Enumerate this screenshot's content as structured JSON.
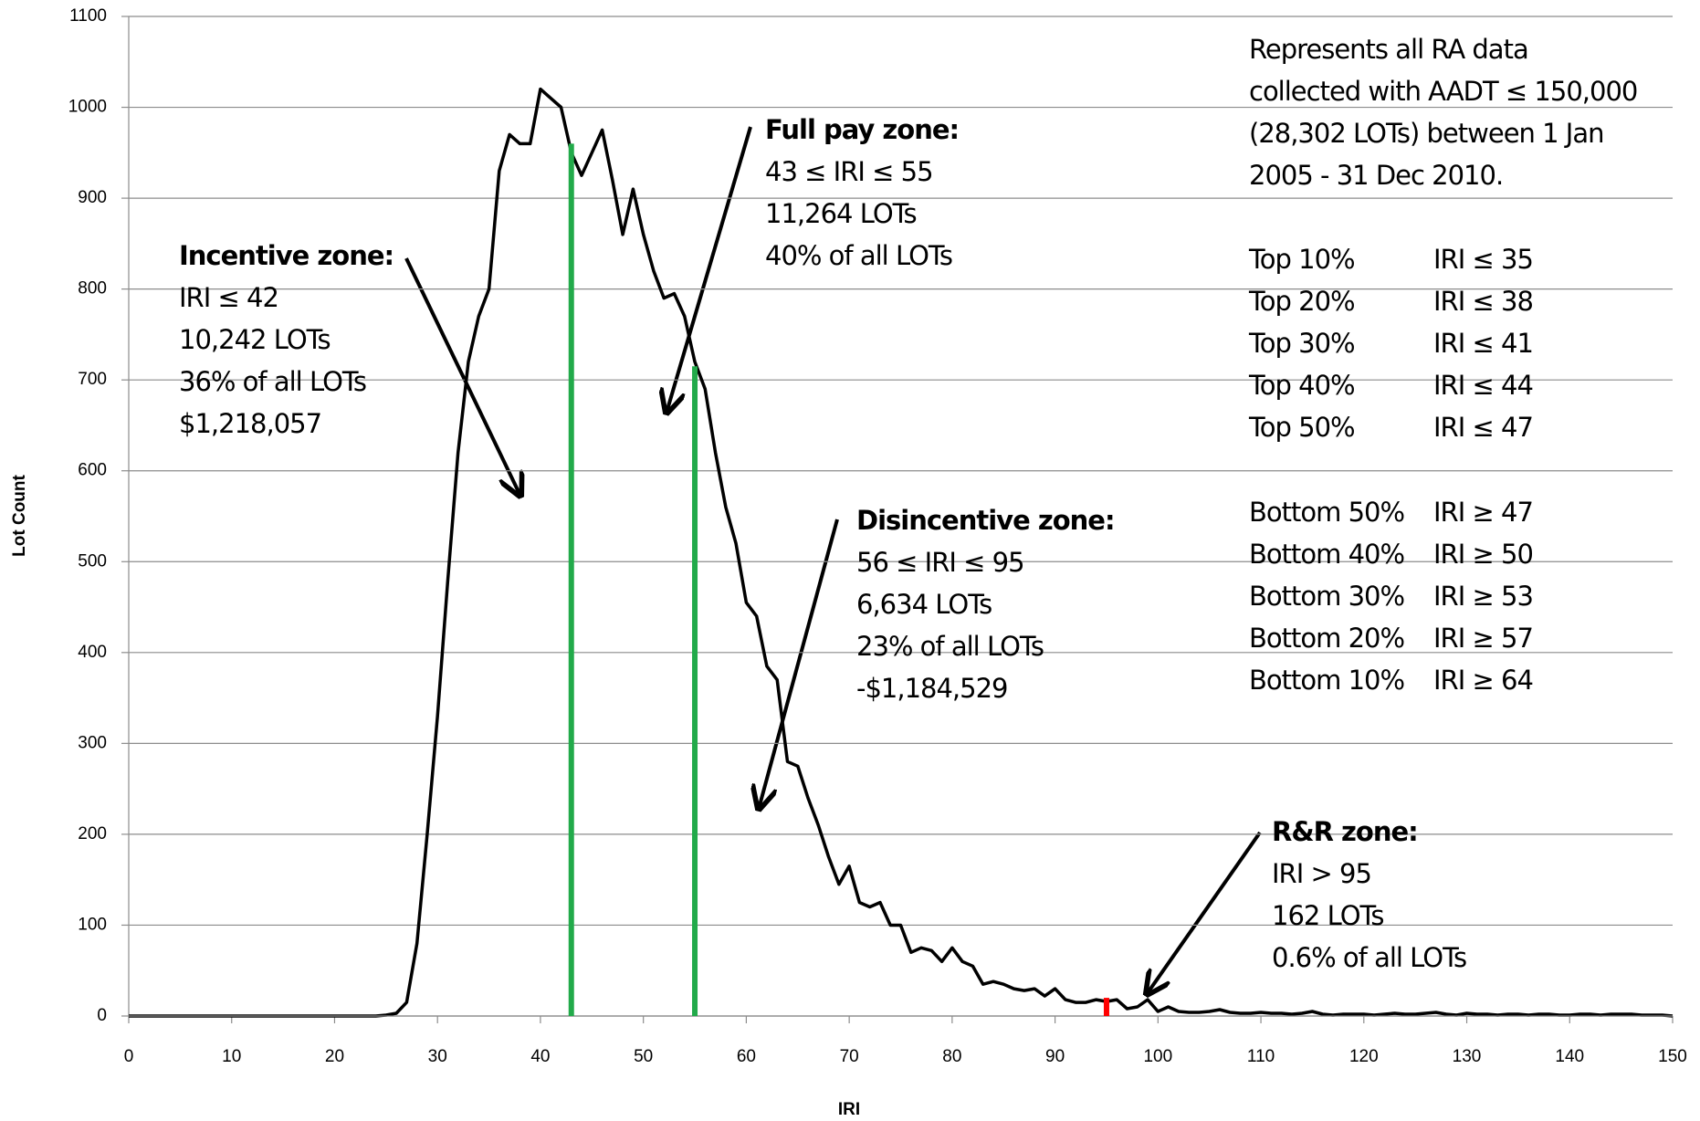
{
  "chart_data": {
    "type": "line",
    "xlabel": "IRI",
    "ylabel": "Lot Count",
    "x": [
      0,
      1,
      2,
      3,
      4,
      5,
      6,
      7,
      8,
      9,
      10,
      11,
      12,
      13,
      14,
      15,
      16,
      17,
      18,
      19,
      20,
      21,
      22,
      23,
      24,
      25,
      26,
      27,
      28,
      29,
      30,
      31,
      32,
      33,
      34,
      35,
      36,
      37,
      38,
      39,
      40,
      41,
      42,
      43,
      44,
      45,
      46,
      47,
      48,
      49,
      50,
      51,
      52,
      53,
      54,
      55,
      56,
      57,
      58,
      59,
      60,
      61,
      62,
      63,
      64,
      65,
      66,
      67,
      68,
      69,
      70,
      71,
      72,
      73,
      74,
      75,
      76,
      77,
      78,
      79,
      80,
      81,
      82,
      83,
      84,
      85,
      86,
      87,
      88,
      89,
      90,
      91,
      92,
      93,
      94,
      95,
      96,
      97,
      98,
      99,
      100,
      101,
      102,
      103,
      104,
      105,
      106,
      107,
      108,
      109,
      110,
      111,
      112,
      113,
      114,
      115,
      116,
      117,
      118,
      119,
      120,
      121,
      122,
      123,
      124,
      125,
      126,
      127,
      128,
      129,
      130,
      131,
      132,
      133,
      134,
      135,
      136,
      137,
      138,
      139,
      140,
      141,
      142,
      143,
      144,
      145,
      146,
      147,
      148,
      149,
      150
    ],
    "series": [
      {
        "color": "#000000",
        "values": [
          0,
          0,
          0,
          0,
          0,
          0,
          0,
          0,
          0,
          0,
          0,
          0,
          0,
          0,
          0,
          0,
          0,
          0,
          0,
          0,
          0,
          0,
          0,
          0,
          0,
          1,
          3,
          15,
          80,
          200,
          330,
          480,
          620,
          720,
          770,
          800,
          930,
          970,
          960,
          960,
          1020,
          1010,
          1000,
          950,
          925,
          950,
          975,
          920,
          860,
          910,
          860,
          820,
          790,
          795,
          770,
          720,
          690,
          620,
          560,
          520,
          455,
          440,
          385,
          370,
          280,
          275,
          240,
          210,
          175,
          145,
          165,
          125,
          120,
          125,
          100,
          100,
          70,
          75,
          72,
          60,
          75,
          60,
          55,
          35,
          38,
          35,
          30,
          28,
          30,
          22,
          30,
          18,
          15,
          15,
          18,
          16,
          18,
          8,
          10,
          18,
          5,
          10,
          5,
          4,
          4,
          5,
          7,
          4,
          3,
          3,
          4,
          3,
          3,
          2,
          3,
          5,
          2,
          1,
          2,
          2,
          2,
          1,
          2,
          3,
          2,
          2,
          3,
          4,
          2,
          1,
          3,
          2,
          2,
          1,
          2,
          2,
          1,
          2,
          2,
          1,
          1,
          2,
          2,
          1,
          2,
          2,
          2,
          1,
          1,
          1,
          0
        ]
      }
    ],
    "markers": [
      {
        "x": 43,
        "y": 960,
        "color": "#22aa4a"
      },
      {
        "x": 55,
        "y": 715,
        "color": "#22aa4a"
      },
      {
        "x": 95,
        "y": 20,
        "color": "#ff0000"
      }
    ],
    "xlim": [
      0,
      150
    ],
    "ylim": [
      0,
      1100
    ],
    "xticks": [
      0,
      10,
      20,
      30,
      40,
      50,
      60,
      70,
      80,
      90,
      100,
      110,
      120,
      130,
      140,
      150
    ],
    "yticks": [
      0,
      100,
      200,
      300,
      400,
      500,
      600,
      700,
      800,
      900,
      1000,
      1100
    ],
    "grid": true,
    "annotations": [
      {
        "title": "Incentive zone:",
        "lines": [
          "IRI ≤ 42",
          "10,242 LOTs",
          "36% of all LOTs",
          "$1,218,057"
        ]
      },
      {
        "title": "Full pay zone:",
        "lines": [
          "43 ≤ IRI ≤ 55",
          "11,264 LOTs",
          "40% of all LOTs"
        ]
      },
      {
        "title": "Disincentive zone:",
        "lines": [
          "56 ≤ IRI ≤ 95",
          "6,634 LOTs",
          "23% of all LOTs",
          "-$1,184,529"
        ]
      },
      {
        "title": "R&R zone:",
        "lines": [
          "IRI > 95",
          "162 LOTs",
          "0.6% of all LOTs"
        ]
      }
    ],
    "note": [
      "Represents all RA data",
      "collected with AADT ≤ 150,000",
      "(28,302 LOTs) between 1 Jan",
      "2005 - 31 Dec 2010."
    ],
    "percentiles": [
      [
        "Top 10%",
        "IRI ≤ 35"
      ],
      [
        "Top 20%",
        "IRI ≤ 38"
      ],
      [
        "Top 30%",
        "IRI ≤ 41"
      ],
      [
        "Top 40%",
        "IRI ≤ 44"
      ],
      [
        "Top 50%",
        "IRI ≤ 47"
      ],
      [
        "Bottom 50%",
        "IRI ≥ 47"
      ],
      [
        "Bottom 40%",
        "IRI ≥ 50"
      ],
      [
        "Bottom 30%",
        "IRI ≥ 53"
      ],
      [
        "Bottom 20%",
        "IRI ≥ 57"
      ],
      [
        "Bottom 10%",
        "IRI ≥ 64"
      ]
    ]
  }
}
